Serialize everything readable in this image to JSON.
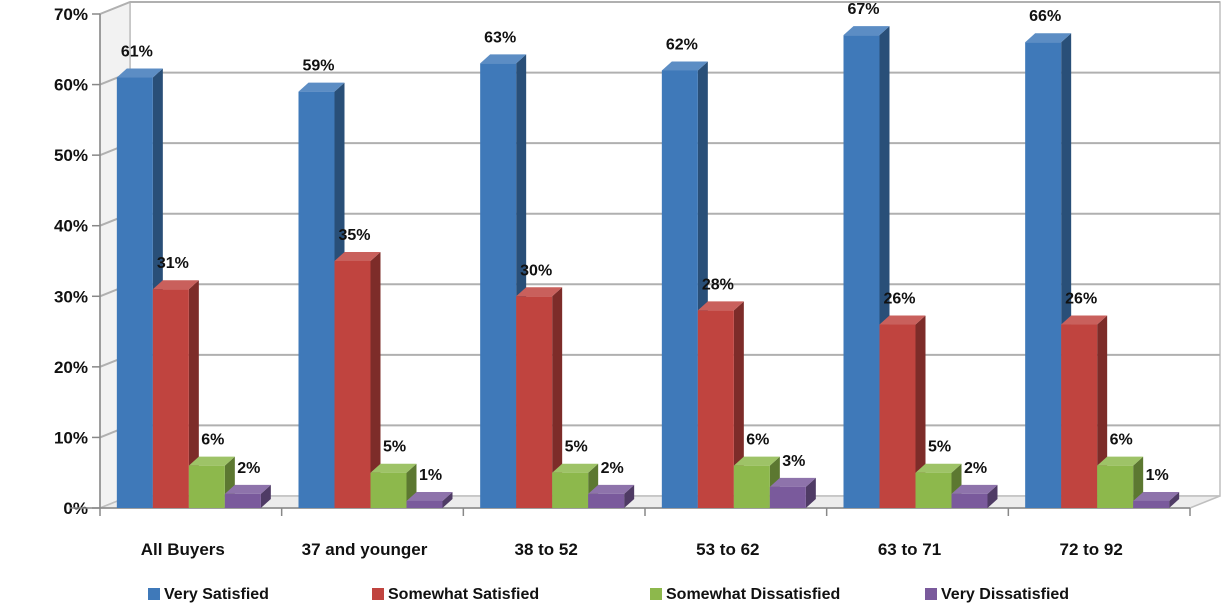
{
  "chart_data": {
    "type": "bar",
    "title": "",
    "xlabel": "",
    "ylabel": "",
    "ylim": [
      0,
      70
    ],
    "y_ticks": [
      "0%",
      "10%",
      "20%",
      "30%",
      "40%",
      "50%",
      "60%",
      "70%"
    ],
    "grid": true,
    "three_d": true,
    "legend_position": "bottom",
    "categories": [
      "All Buyers",
      "37 and younger",
      "38 to 52",
      "53 to 62",
      "63 to 71",
      "72 to 92"
    ],
    "series": [
      {
        "name": "Very Satisfied",
        "color": "#3f79b9",
        "values": [
          61,
          59,
          63,
          62,
          67,
          66
        ],
        "labels": [
          "61%",
          "59%",
          "63%",
          "62%",
          "67%",
          "66%"
        ]
      },
      {
        "name": "Somewhat Satisfied",
        "color": "#c0443f",
        "values": [
          31,
          35,
          30,
          28,
          26,
          26
        ],
        "labels": [
          "31%",
          "35%",
          "30%",
          "28%",
          "26%",
          "26%"
        ]
      },
      {
        "name": "Somewhat Dissatisfied",
        "color": "#8db84c",
        "values": [
          6,
          5,
          5,
          6,
          5,
          6
        ],
        "labels": [
          "6%",
          "5%",
          "5%",
          "6%",
          "5%",
          "6%"
        ]
      },
      {
        "name": "Very Dissatisfied",
        "color": "#7a5a9c",
        "values": [
          2,
          1,
          2,
          3,
          2,
          1
        ],
        "labels": [
          "2%",
          "1%",
          "2%",
          "3%",
          "2%",
          "1%"
        ]
      }
    ]
  }
}
